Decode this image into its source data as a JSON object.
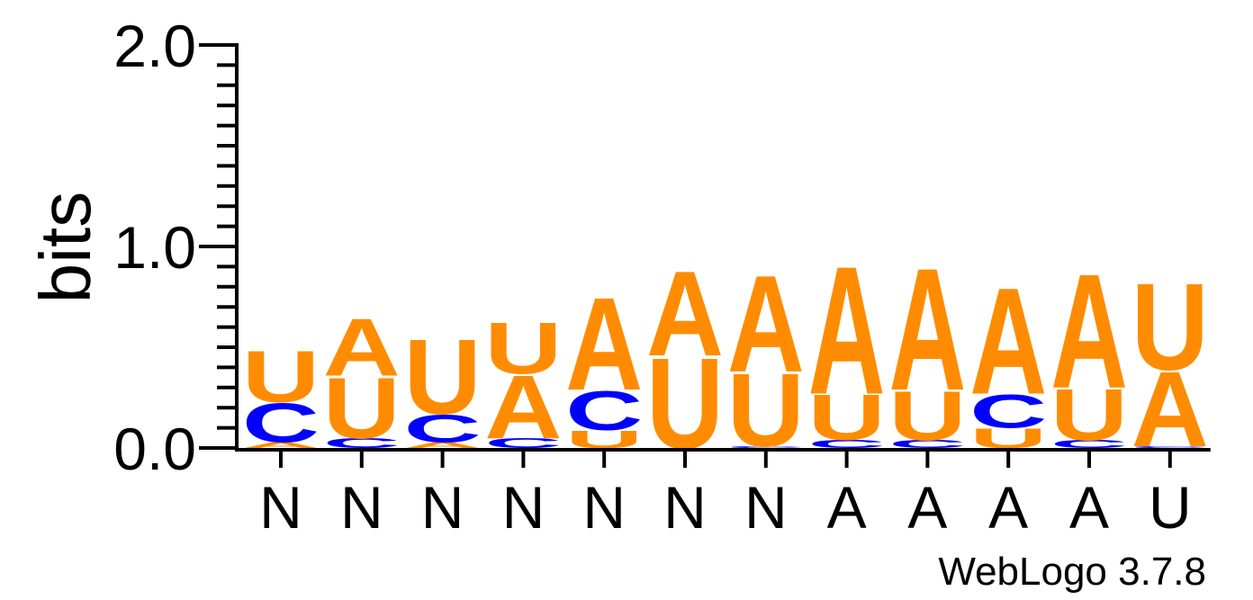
{
  "chart_data": {
    "type": "sequence-logo",
    "ylabel": "bits",
    "ylim": [
      0,
      2.0
    ],
    "y_ticks": [
      {
        "value": 0.0,
        "label": "0.0"
      },
      {
        "value": 1.0,
        "label": "1.0"
      },
      {
        "value": 2.0,
        "label": "2.0"
      }
    ],
    "x_tick_labels": [
      "N",
      "N",
      "N",
      "N",
      "N",
      "N",
      "N",
      "A",
      "A",
      "A",
      "A",
      "U"
    ],
    "colors": {
      "A": "#ff8c00",
      "U": "#ff8c00",
      "C": "#0000ff",
      "G": "#000000"
    },
    "positions": [
      {
        "label": "N",
        "stack": [
          {
            "letter": "A",
            "height": 0.03
          },
          {
            "letter": "C",
            "height": 0.2
          },
          {
            "letter": "U",
            "height": 0.26
          }
        ]
      },
      {
        "label": "N",
        "stack": [
          {
            "letter": "C",
            "height": 0.05
          },
          {
            "letter": "U",
            "height": 0.31
          },
          {
            "letter": "A",
            "height": 0.29
          }
        ]
      },
      {
        "label": "N",
        "stack": [
          {
            "letter": "A",
            "height": 0.03
          },
          {
            "letter": "C",
            "height": 0.14
          },
          {
            "letter": "U",
            "height": 0.38
          }
        ]
      },
      {
        "label": "N",
        "stack": [
          {
            "letter": "C",
            "height": 0.05
          },
          {
            "letter": "A",
            "height": 0.32
          },
          {
            "letter": "U",
            "height": 0.26
          }
        ]
      },
      {
        "label": "N",
        "stack": [
          {
            "letter": "U",
            "height": 0.09
          },
          {
            "letter": "C",
            "height": 0.2
          },
          {
            "letter": "A",
            "height": 0.47
          }
        ]
      },
      {
        "label": "N",
        "stack": [
          {
            "letter": "U",
            "height": 0.46
          },
          {
            "letter": "A",
            "height": 0.43
          }
        ]
      },
      {
        "label": "N",
        "stack": [
          {
            "letter": "C",
            "height": 0.01
          },
          {
            "letter": "U",
            "height": 0.37
          },
          {
            "letter": "A",
            "height": 0.49
          }
        ]
      },
      {
        "label": "A",
        "stack": [
          {
            "letter": "C",
            "height": 0.04
          },
          {
            "letter": "U",
            "height": 0.23
          },
          {
            "letter": "A",
            "height": 0.65
          }
        ]
      },
      {
        "label": "A",
        "stack": [
          {
            "letter": "C",
            "height": 0.04
          },
          {
            "letter": "U",
            "height": 0.25
          },
          {
            "letter": "A",
            "height": 0.62
          }
        ]
      },
      {
        "label": "A",
        "stack": [
          {
            "letter": "U",
            "height": 0.1
          },
          {
            "letter": "C",
            "height": 0.17
          },
          {
            "letter": "A",
            "height": 0.54
          }
        ]
      },
      {
        "label": "A",
        "stack": [
          {
            "letter": "C",
            "height": 0.04
          },
          {
            "letter": "U",
            "height": 0.26
          },
          {
            "letter": "A",
            "height": 0.58
          }
        ]
      },
      {
        "label": "U",
        "stack": [
          {
            "letter": "C",
            "height": 0.01
          },
          {
            "letter": "A",
            "height": 0.38
          },
          {
            "letter": "U",
            "height": 0.44
          }
        ]
      }
    ]
  },
  "footer": {
    "credit": "WebLogo 3.7.8"
  }
}
